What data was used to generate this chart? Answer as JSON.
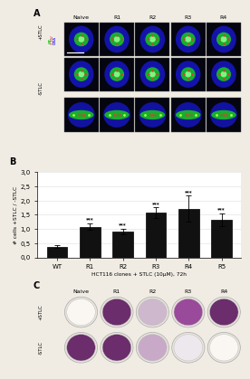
{
  "panel_b": {
    "categories": [
      "WT",
      "R1",
      "R2",
      "R3",
      "R4",
      "R5"
    ],
    "values": [
      0.37,
      1.08,
      0.92,
      1.58,
      1.72,
      1.32
    ],
    "errors": [
      0.05,
      0.12,
      0.1,
      0.18,
      0.45,
      0.22
    ],
    "bar_color": "#111111",
    "ylabel": "# cells +STLC / -STLC",
    "xlabel": "HCT116 clones + STLC (10μM), 72h",
    "ylim": [
      0.0,
      3.0
    ],
    "yticks": [
      0.0,
      0.5,
      1.0,
      1.5,
      2.0,
      2.5,
      3.0
    ],
    "significance": [
      "",
      "***",
      "***",
      "***",
      "***",
      "***"
    ]
  },
  "panel_a_label": "A",
  "panel_b_label": "B",
  "panel_c_label": "C",
  "panel_a_col_labels": [
    "Naive",
    "R1",
    "R2",
    "R3",
    "R4"
  ],
  "panel_a_plus_label": "+STLC",
  "panel_a_minus_label": "-STLC",
  "panel_a_color_label": "MT/CEN/DNA",
  "panel_c_col_labels": [
    "Naive",
    "R1",
    "R2",
    "R3",
    "R4"
  ],
  "panel_c_plus_label": "+STLC",
  "panel_c_minus_label": "-STLC",
  "colony_colors_plus": [
    "#faf7f2",
    "#6b2d6b",
    "#cdb8cd",
    "#9a4a9a",
    "#6b2d6b"
  ],
  "colony_colors_minus": [
    "#6b2d6b",
    "#6b2d6b",
    "#c8aac8",
    "#ede8ed",
    "#faf7f2"
  ],
  "fig_bg": "#f0ece4"
}
